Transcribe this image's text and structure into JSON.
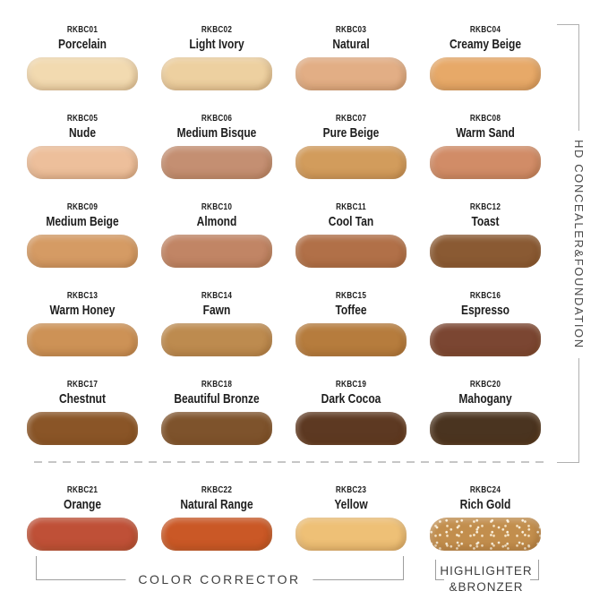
{
  "side_group": {
    "label": "HD CONCEALER&FOUNDATION"
  },
  "bottom_groups": {
    "color_corrector": "COLOR CORRECTOR",
    "highlighter_line1": "HIGHLIGHTER",
    "highlighter_line2": "&BRONZER"
  },
  "palette": {
    "bracket_line": "#b0b0b0",
    "label_text": "#1d1d1d",
    "group_text": "#3f3f3f"
  },
  "swatches": [
    {
      "code": "RKBC01",
      "name": "Porcelain",
      "color": "#f2dab0"
    },
    {
      "code": "RKBC02",
      "name": "Light Ivory",
      "color": "#edd0a0"
    },
    {
      "code": "RKBC03",
      "name": "Natural",
      "color": "#e2ae85"
    },
    {
      "code": "RKBC04",
      "name": "Creamy Beige",
      "color": "#e7a968"
    },
    {
      "code": "RKBC05",
      "name": "Nude",
      "color": "#edbf9b"
    },
    {
      "code": "RKBC06",
      "name": "Medium Bisque",
      "color": "#c48f72"
    },
    {
      "code": "RKBC07",
      "name": "Pure Beige",
      "color": "#d29c5c"
    },
    {
      "code": "RKBC08",
      "name": "Warm Sand",
      "color": "#d18c67"
    },
    {
      "code": "RKBC09",
      "name": "Medium Beige",
      "color": "#d59b64"
    },
    {
      "code": "RKBC10",
      "name": "Almond",
      "color": "#c18565"
    },
    {
      "code": "RKBC11",
      "name": "Cool Tan",
      "color": "#b17048"
    },
    {
      "code": "RKBC12",
      "name": "Toast",
      "color": "#8a5a33"
    },
    {
      "code": "RKBC13",
      "name": "Warm Honey",
      "color": "#cd9256"
    },
    {
      "code": "RKBC14",
      "name": "Fawn",
      "color": "#bd8b4f"
    },
    {
      "code": "RKBC15",
      "name": "Toffee",
      "color": "#b67c3d"
    },
    {
      "code": "RKBC16",
      "name": "Espresso",
      "color": "#7b4632"
    },
    {
      "code": "RKBC17",
      "name": "Chestnut",
      "color": "#8a5527"
    },
    {
      "code": "RKBC18",
      "name": "Beautiful Bronze",
      "color": "#7e532c"
    },
    {
      "code": "RKBC19",
      "name": "Dark Cocoa",
      "color": "#5d3922"
    },
    {
      "code": "RKBC20",
      "name": "Mahogany",
      "color": "#4a3420"
    },
    {
      "code": "RKBC21",
      "name": "Orange",
      "color": "#bf5037"
    },
    {
      "code": "RKBC22",
      "name": "Natural Range",
      "color": "#ca5826"
    },
    {
      "code": "RKBC23",
      "name": "Yellow",
      "color": "#eec076"
    },
    {
      "code": "RKBC24",
      "name": "Rich Gold",
      "color": "#c28e4d",
      "sparkle": true
    }
  ]
}
